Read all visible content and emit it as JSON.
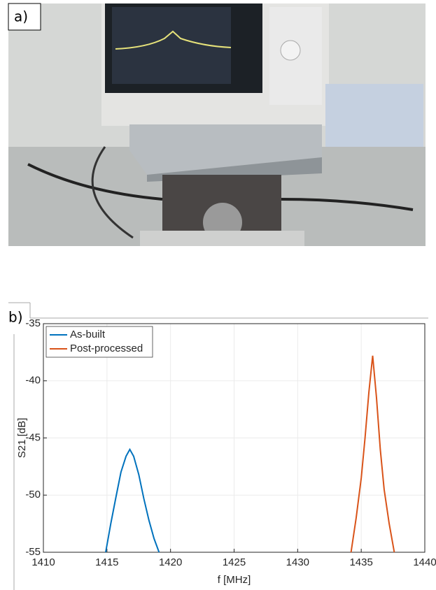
{
  "photo_label": "a)",
  "chart_label": "b)",
  "chart_data": {
    "type": "line",
    "xlabel": "f [MHz]",
    "ylabel": "S21 [dB]",
    "xlim": [
      1410,
      1440
    ],
    "xticks": [
      1410,
      1415,
      1420,
      1425,
      1430,
      1435,
      1440
    ],
    "ylim": [
      -55,
      -35
    ],
    "yticks": [
      -55,
      -50,
      -45,
      -40,
      -35
    ],
    "grid": true,
    "legend": "upper-left",
    "series": [
      {
        "name": "As-built",
        "color": "#0072bd",
        "x": [
          1414.9,
          1415.3,
          1415.7,
          1416.1,
          1416.5,
          1416.8,
          1417.1,
          1417.5,
          1417.9,
          1418.3,
          1418.7,
          1419.1
        ],
        "values": [
          -55,
          -52.5,
          -50.2,
          -48,
          -46.6,
          -46,
          -46.6,
          -48.2,
          -50.3,
          -52.2,
          -53.8,
          -55
        ]
      },
      {
        "name": "Post-processed",
        "color": "#d95319",
        "x": [
          1434.2,
          1434.6,
          1435.0,
          1435.3,
          1435.6,
          1435.9,
          1436.2,
          1436.5,
          1436.8,
          1437.2,
          1437.6
        ],
        "values": [
          -55,
          -52,
          -48.5,
          -45,
          -41,
          -37.8,
          -41.5,
          -46,
          -49.5,
          -52.5,
          -55
        ]
      }
    ]
  }
}
